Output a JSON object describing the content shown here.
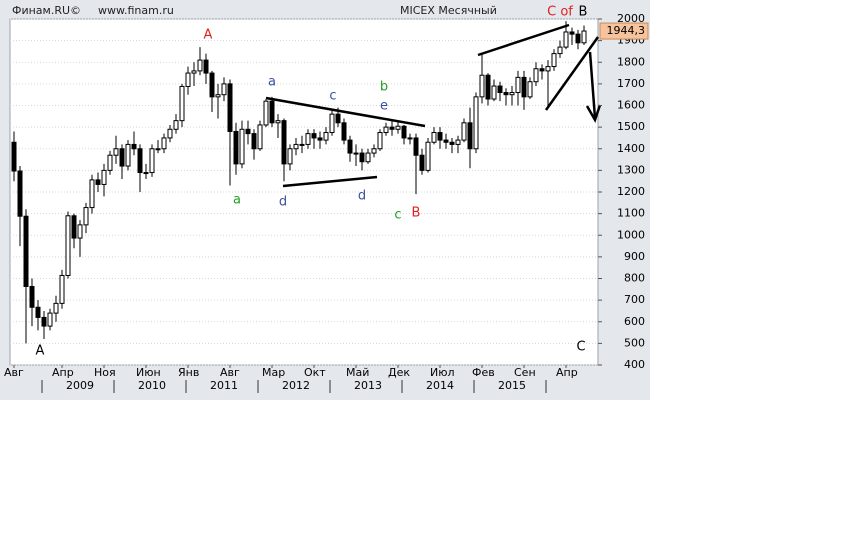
{
  "chart_data": {
    "type": "candlestick",
    "source": "Финам.RU©",
    "url": "www.finam.ru",
    "title": "MICEX Месячный",
    "categories": [
      "Авг",
      null,
      null,
      null,
      null,
      null,
      null,
      null,
      "Апр",
      null,
      null,
      null,
      null,
      null,
      null,
      "Ноя",
      null,
      null,
      null,
      null,
      null,
      null,
      "Июн",
      null,
      null,
      null,
      null,
      null,
      null,
      "Янв",
      null,
      null,
      null,
      null,
      null,
      null,
      "Авг",
      null,
      null,
      null,
      null,
      null,
      null,
      "Мар",
      null,
      null,
      null,
      null,
      null,
      null,
      "Окт",
      null,
      null,
      null,
      null,
      null,
      null,
      "Май",
      null,
      null,
      null,
      null,
      null,
      null,
      "Дек",
      null,
      null,
      null,
      null,
      null,
      null,
      "Июл",
      null,
      null,
      null,
      null,
      null,
      null,
      "Фев",
      null,
      null,
      null,
      null,
      null,
      null,
      "Сен",
      null,
      null,
      null,
      null,
      null,
      null,
      "Апр",
      null,
      null,
      null
    ],
    "years": [
      null,
      null,
      null,
      null,
      null,
      null,
      null,
      null,
      null,
      null,
      null,
      "2009",
      null,
      null,
      null,
      null,
      null,
      null,
      null,
      null,
      null,
      null,
      null,
      "2010",
      null,
      null,
      null,
      null,
      null,
      null,
      null,
      null,
      null,
      null,
      null,
      "2011",
      null,
      null,
      null,
      null,
      null,
      null,
      null,
      null,
      null,
      null,
      null,
      "2012",
      null,
      null,
      null,
      null,
      null,
      null,
      null,
      null,
      null,
      null,
      null,
      "2013",
      null,
      null,
      null,
      null,
      null,
      null,
      null,
      null,
      null,
      null,
      null,
      "2014",
      null,
      null,
      null,
      null,
      null,
      null,
      null,
      null,
      null,
      null,
      null,
      "2015",
      null,
      null,
      null,
      null,
      null,
      null,
      null,
      null,
      null,
      null,
      null,
      null
    ],
    "open": [
      1430,
      1297,
      1088,
      763,
      667,
      620,
      580,
      640,
      685,
      814,
      1090,
      987,
      1048,
      1128,
      1256,
      1235,
      1300,
      1370,
      1400,
      1320,
      1420,
      1400,
      1290,
      1290,
      1400,
      1400,
      1450,
      1490,
      1530,
      1688,
      1750,
      1760,
      1810,
      1750,
      1640,
      1650,
      1700,
      1480,
      1330,
      1490,
      1470,
      1400,
      1510,
      1620,
      1520,
      1530,
      1330,
      1400,
      1420,
      1420,
      1470,
      1450,
      1440,
      1475,
      1560,
      1520,
      1440,
      1380,
      1380,
      1340,
      1380,
      1400,
      1475,
      1500,
      1490,
      1504,
      1450,
      1450,
      1370,
      1300,
      1430,
      1475,
      1440,
      1430,
      1420,
      1440,
      1520,
      1400,
      1640,
      1740,
      1630,
      1690,
      1660,
      1650,
      1660,
      1730,
      1640,
      1710,
      1770,
      1760,
      1780,
      1840,
      1870,
      1940,
      1930,
      1890
    ],
    "high": [
      1480,
      1320,
      1120,
      800,
      700,
      650,
      660,
      720,
      840,
      1110,
      1100,
      1070,
      1150,
      1280,
      1290,
      1330,
      1390,
      1460,
      1420,
      1440,
      1480,
      1420,
      1330,
      1420,
      1440,
      1470,
      1510,
      1560,
      1700,
      1780,
      1800,
      1870,
      1840,
      1760,
      1700,
      1730,
      1720,
      1520,
      1530,
      1530,
      1490,
      1530,
      1630,
      1640,
      1560,
      1540,
      1420,
      1450,
      1460,
      1490,
      1490,
      1480,
      1500,
      1580,
      1590,
      1540,
      1460,
      1420,
      1400,
      1400,
      1420,
      1490,
      1520,
      1530,
      1530,
      1510,
      1470,
      1470,
      1400,
      1450,
      1500,
      1500,
      1470,
      1450,
      1460,
      1540,
      1590,
      1660,
      1840,
      1750,
      1720,
      1710,
      1680,
      1690,
      1760,
      1760,
      1730,
      1800,
      1790,
      1810,
      1860,
      1900,
      1990,
      1960,
      1950,
      1970
    ],
    "low": [
      1250,
      950,
      500,
      580,
      560,
      520,
      560,
      600,
      660,
      800,
      940,
      900,
      1010,
      1100,
      1200,
      1180,
      1280,
      1330,
      1260,
      1300,
      1370,
      1200,
      1260,
      1270,
      1380,
      1380,
      1430,
      1470,
      1500,
      1650,
      1690,
      1740,
      1700,
      1570,
      1540,
      1620,
      1230,
      1280,
      1310,
      1420,
      1350,
      1390,
      1500,
      1500,
      1450,
      1250,
      1300,
      1370,
      1380,
      1400,
      1400,
      1400,
      1420,
      1460,
      1500,
      1420,
      1340,
      1320,
      1300,
      1330,
      1360,
      1390,
      1460,
      1460,
      1470,
      1420,
      1420,
      1190,
      1280,
      1290,
      1420,
      1400,
      1400,
      1380,
      1380,
      1430,
      1310,
      1380,
      1610,
      1600,
      1620,
      1620,
      1600,
      1600,
      1600,
      1580,
      1630,
      1690,
      1720,
      1590,
      1760,
      1820,
      1860,
      1880,
      1860,
      1880
    ],
    "close": [
      1297,
      1088,
      763,
      667,
      620,
      580,
      640,
      685,
      814,
      1090,
      987,
      1048,
      1128,
      1256,
      1235,
      1300,
      1370,
      1400,
      1320,
      1420,
      1400,
      1290,
      1290,
      1400,
      1400,
      1450,
      1490,
      1530,
      1688,
      1750,
      1760,
      1810,
      1750,
      1640,
      1650,
      1700,
      1480,
      1330,
      1490,
      1470,
      1400,
      1510,
      1620,
      1520,
      1530,
      1330,
      1400,
      1420,
      1420,
      1470,
      1450,
      1440,
      1475,
      1560,
      1520,
      1440,
      1380,
      1380,
      1340,
      1380,
      1400,
      1475,
      1500,
      1490,
      1504,
      1450,
      1450,
      1370,
      1300,
      1430,
      1475,
      1440,
      1430,
      1420,
      1440,
      1520,
      1400,
      1640,
      1740,
      1630,
      1690,
      1660,
      1650,
      1660,
      1730,
      1640,
      1710,
      1770,
      1760,
      1780,
      1840,
      1870,
      1940,
      1930,
      1890,
      1944.3
    ],
    "up_color": "#ffffff",
    "down_color": "#000000",
    "price_tag": {
      "value": 1944.3,
      "label": "1944,3"
    },
    "ylim": [
      400,
      2000
    ],
    "yticks": [
      400,
      500,
      600,
      700,
      800,
      900,
      1000,
      1100,
      1200,
      1300,
      1400,
      1500,
      1600,
      1700,
      1800,
      1900,
      2000
    ],
    "grid": true,
    "annotations": [
      {
        "text": "A",
        "color": "#e02020"
      },
      {
        "text": "a",
        "color": "#3a4fa0"
      },
      {
        "text": "c",
        "color": "#3a4fa0"
      },
      {
        "text": "b",
        "color": "#22a022"
      },
      {
        "text": "e",
        "color": "#3a4fa0"
      },
      {
        "text": "a",
        "color": "#22a022"
      },
      {
        "text": "d",
        "color": "#3a4fa0"
      },
      {
        "text": "d",
        "color": "#3a4fa0"
      },
      {
        "text": "c",
        "color": "#22a022"
      },
      {
        "text": "B",
        "color": "#e02020"
      },
      {
        "text": "A",
        "color": "#000000"
      },
      {
        "text": "C",
        "color": "#000000"
      },
      {
        "text": "C of",
        "color": "#e02020"
      },
      {
        "text": "B",
        "color": "#000000"
      }
    ]
  }
}
